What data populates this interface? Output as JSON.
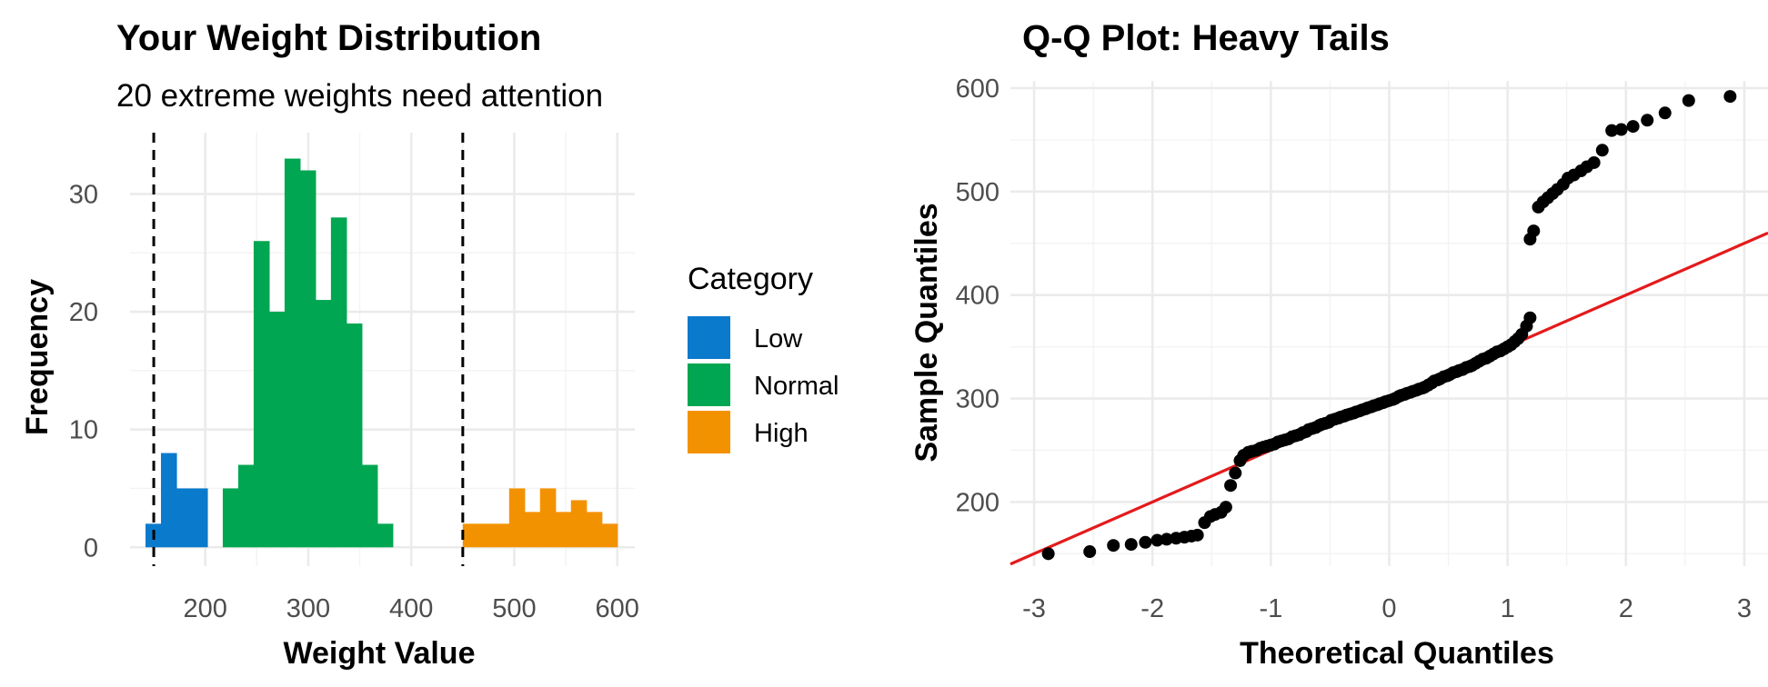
{
  "chart_data": [
    {
      "type": "bar",
      "title": "Your Weight Distribution",
      "subtitle": "20 extreme weights need attention",
      "xlabel": "Weight Value",
      "ylabel": "Frequency",
      "xlim": [
        127,
        617
      ],
      "ylim": [
        -1.6,
        35.2
      ],
      "x_ticks": [
        200,
        300,
        400,
        500,
        600
      ],
      "y_ticks": [
        0,
        10,
        20,
        30
      ],
      "grid": true,
      "legend": {
        "title": "Category",
        "position": "right",
        "entries": [
          {
            "label": "Low",
            "color": "#0A7ACC"
          },
          {
            "label": "Normal",
            "color": "#00A651"
          },
          {
            "label": "High",
            "color": "#F39200"
          }
        ]
      },
      "vlines": [
        150,
        450
      ],
      "bin_width": 15,
      "bins": [
        {
          "x0": 142,
          "x1": 157,
          "count": 2,
          "category": "Low"
        },
        {
          "x0": 157,
          "x1": 172,
          "count": 8,
          "category": "Low"
        },
        {
          "x0": 172,
          "x1": 187,
          "count": 5,
          "category": "Low"
        },
        {
          "x0": 187,
          "x1": 202,
          "count": 5,
          "category": "Low"
        },
        {
          "x0": 217,
          "x1": 232,
          "count": 5,
          "category": "Normal"
        },
        {
          "x0": 232,
          "x1": 247,
          "count": 7,
          "category": "Normal"
        },
        {
          "x0": 247,
          "x1": 262,
          "count": 26,
          "category": "Normal"
        },
        {
          "x0": 262,
          "x1": 277,
          "count": 20,
          "category": "Normal"
        },
        {
          "x0": 277,
          "x1": 292,
          "count": 33,
          "category": "Normal"
        },
        {
          "x0": 292,
          "x1": 307,
          "count": 32,
          "category": "Normal"
        },
        {
          "x0": 307,
          "x1": 322,
          "count": 21,
          "category": "Normal"
        },
        {
          "x0": 322,
          "x1": 337,
          "count": 28,
          "category": "Normal"
        },
        {
          "x0": 337,
          "x1": 352,
          "count": 19,
          "category": "Normal"
        },
        {
          "x0": 352,
          "x1": 367,
          "count": 7,
          "category": "Normal"
        },
        {
          "x0": 367,
          "x1": 382,
          "count": 2,
          "category": "Normal"
        },
        {
          "x0": 450,
          "x1": 465,
          "count": 2,
          "category": "High"
        },
        {
          "x0": 465,
          "x1": 480,
          "count": 2,
          "category": "High"
        },
        {
          "x0": 480,
          "x1": 495,
          "count": 2,
          "category": "High"
        },
        {
          "x0": 495,
          "x1": 510,
          "count": 5,
          "category": "High"
        },
        {
          "x0": 510,
          "x1": 525,
          "count": 3,
          "category": "High"
        },
        {
          "x0": 525,
          "x1": 540,
          "count": 5,
          "category": "High"
        },
        {
          "x0": 540,
          "x1": 555,
          "count": 3,
          "category": "High"
        },
        {
          "x0": 555,
          "x1": 570,
          "count": 4,
          "category": "High"
        },
        {
          "x0": 570,
          "x1": 585,
          "count": 3,
          "category": "High"
        },
        {
          "x0": 585,
          "x1": 600,
          "count": 2,
          "category": "High"
        }
      ]
    },
    {
      "type": "scatter",
      "title": "Q-Q Plot: Heavy Tails",
      "xlabel": "Theoretical Quantiles",
      "ylabel": "Sample Quantiles",
      "xlim": [
        -3.2,
        3.2
      ],
      "ylim": [
        138,
        607
      ],
      "x_ticks": [
        -3,
        -2,
        -1,
        0,
        1,
        2,
        3
      ],
      "y_ticks": [
        200,
        300,
        400,
        500,
        600
      ],
      "grid": true,
      "point_color": "#000000",
      "line_color": "#E41A1C",
      "reference_line": {
        "intercept": 300,
        "slope": 50
      },
      "points": [
        [
          -2.88,
          150
        ],
        [
          -2.53,
          152
        ],
        [
          -2.33,
          158
        ],
        [
          -2.18,
          159
        ],
        [
          -2.06,
          161
        ],
        [
          -1.96,
          163
        ],
        [
          -1.88,
          164
        ],
        [
          -1.8,
          165
        ],
        [
          -1.73,
          166
        ],
        [
          -1.67,
          167
        ],
        [
          -1.62,
          168
        ],
        [
          -1.56,
          180
        ],
        [
          -1.51,
          186
        ],
        [
          -1.47,
          188
        ],
        [
          -1.42,
          190
        ],
        [
          -1.38,
          195
        ],
        [
          -1.34,
          216
        ],
        [
          -1.3,
          228
        ],
        [
          -1.26,
          240
        ],
        [
          -1.23,
          245
        ],
        [
          -1.19,
          248
        ],
        [
          -1.16,
          249
        ],
        [
          -1.12,
          250
        ],
        [
          -1.09,
          252
        ],
        [
          -1.06,
          253
        ],
        [
          -1.03,
          254
        ],
        [
          -1.0,
          255
        ],
        [
          -0.97,
          256
        ],
        [
          -0.94,
          258
        ],
        [
          -0.91,
          259
        ],
        [
          -0.88,
          260
        ],
        [
          -0.85,
          261
        ],
        [
          -0.82,
          263
        ],
        [
          -0.79,
          264
        ],
        [
          -0.76,
          265
        ],
        [
          -0.73,
          267
        ],
        [
          -0.7,
          268
        ],
        [
          -0.68,
          270
        ],
        [
          -0.65,
          271
        ],
        [
          -0.62,
          272
        ],
        [
          -0.59,
          274
        ],
        [
          -0.57,
          275
        ],
        [
          -0.54,
          276
        ],
        [
          -0.51,
          277
        ],
        [
          -0.49,
          279
        ],
        [
          -0.46,
          280
        ],
        [
          -0.43,
          281
        ],
        [
          -0.41,
          282
        ],
        [
          -0.38,
          283
        ],
        [
          -0.36,
          284
        ],
        [
          -0.33,
          285
        ],
        [
          -0.3,
          286
        ],
        [
          -0.28,
          287
        ],
        [
          -0.25,
          288
        ],
        [
          -0.23,
          289
        ],
        [
          -0.2,
          290
        ],
        [
          -0.18,
          291
        ],
        [
          -0.15,
          292
        ],
        [
          -0.13,
          293
        ],
        [
          -0.1,
          294
        ],
        [
          -0.08,
          295
        ],
        [
          -0.05,
          296
        ],
        [
          -0.03,
          297
        ],
        [
          0.0,
          298
        ],
        [
          0.03,
          299
        ],
        [
          0.05,
          300
        ],
        [
          0.08,
          302
        ],
        [
          0.1,
          303
        ],
        [
          0.13,
          304
        ],
        [
          0.15,
          305
        ],
        [
          0.18,
          306
        ],
        [
          0.2,
          307
        ],
        [
          0.23,
          308
        ],
        [
          0.25,
          309
        ],
        [
          0.28,
          310
        ],
        [
          0.3,
          311
        ],
        [
          0.33,
          313
        ],
        [
          0.36,
          315
        ],
        [
          0.38,
          317
        ],
        [
          0.41,
          318
        ],
        [
          0.43,
          319
        ],
        [
          0.46,
          321
        ],
        [
          0.49,
          322
        ],
        [
          0.51,
          323
        ],
        [
          0.54,
          325
        ],
        [
          0.57,
          326
        ],
        [
          0.59,
          327
        ],
        [
          0.62,
          328
        ],
        [
          0.65,
          330
        ],
        [
          0.68,
          331
        ],
        [
          0.7,
          332
        ],
        [
          0.73,
          334
        ],
        [
          0.76,
          336
        ],
        [
          0.79,
          338
        ],
        [
          0.82,
          339
        ],
        [
          0.85,
          341
        ],
        [
          0.88,
          343
        ],
        [
          0.91,
          345
        ],
        [
          0.94,
          346
        ],
        [
          0.97,
          348
        ],
        [
          1.0,
          350
        ],
        [
          1.03,
          352
        ],
        [
          1.06,
          355
        ],
        [
          1.09,
          358
        ],
        [
          1.12,
          362
        ],
        [
          1.16,
          370
        ],
        [
          1.19,
          378
        ],
        [
          1.19,
          454
        ],
        [
          1.22,
          462
        ],
        [
          1.26,
          485
        ],
        [
          1.3,
          490
        ],
        [
          1.34,
          494
        ],
        [
          1.38,
          498
        ],
        [
          1.42,
          502
        ],
        [
          1.47,
          507
        ],
        [
          1.51,
          513
        ],
        [
          1.56,
          516
        ],
        [
          1.62,
          520
        ],
        [
          1.67,
          524
        ],
        [
          1.73,
          528
        ],
        [
          1.8,
          540
        ],
        [
          1.88,
          559
        ],
        [
          1.96,
          560
        ],
        [
          2.06,
          563
        ],
        [
          2.18,
          569
        ],
        [
          2.33,
          576
        ],
        [
          2.53,
          588
        ],
        [
          2.88,
          592
        ]
      ]
    }
  ]
}
